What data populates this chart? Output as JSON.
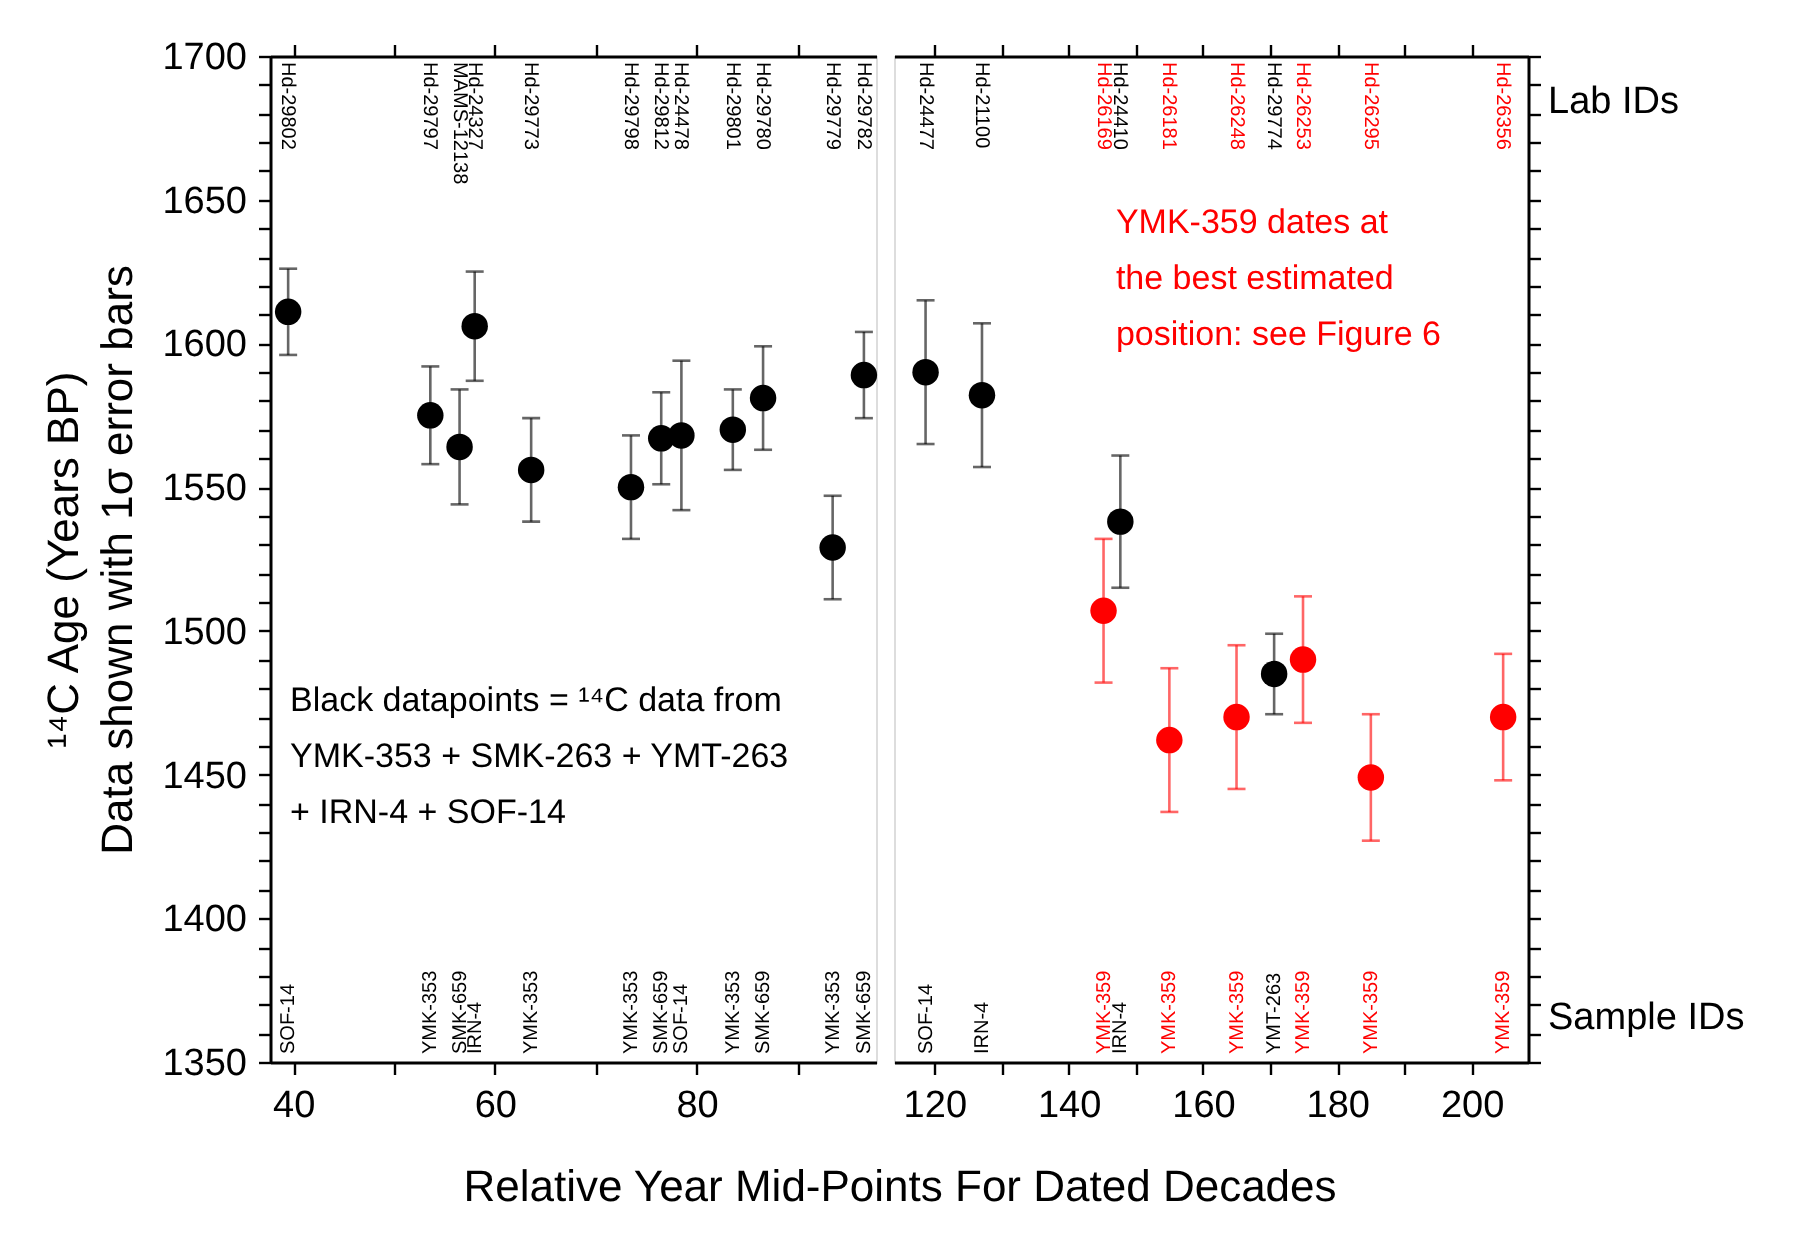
{
  "chart_data": [
    {
      "type": "scatter",
      "ylabel": "¹⁴C Age (Years BP)\nData shown with 1σ error bars",
      "xlabel": "Relative Year Mid-Points For Dated Decades",
      "marker": "circle",
      "grid": false,
      "xlim": [
        37.7,
        97.8
      ],
      "xticks": [
        40,
        {
          "value": 50,
          "label": null
        },
        60,
        {
          "value": 70,
          "label": null
        },
        80,
        {
          "value": 90,
          "label": null
        }
      ],
      "ylim": [
        1350,
        1700
      ],
      "yticks": [
        1350,
        {
          "value": 1360,
          "label": null
        },
        {
          "value": 1370,
          "label": null
        },
        {
          "value": 1380,
          "label": null
        },
        {
          "value": 1390,
          "label": null
        },
        1400,
        {
          "value": 1410,
          "label": null
        },
        {
          "value": 1420,
          "label": null
        },
        {
          "value": 1430,
          "label": null
        },
        {
          "value": 1440,
          "label": null
        },
        1450,
        {
          "value": 1460,
          "label": null
        },
        {
          "value": 1470,
          "label": null
        },
        {
          "value": 1480,
          "label": null
        },
        {
          "value": 1490,
          "label": null
        },
        1500,
        {
          "value": 1510,
          "label": null
        },
        {
          "value": 1520,
          "label": null
        },
        {
          "value": 1530,
          "label": null
        },
        {
          "value": 1540,
          "label": null
        },
        1550,
        {
          "value": 1560,
          "label": null
        },
        {
          "value": 1570,
          "label": null
        },
        {
          "value": 1580,
          "label": null
        },
        {
          "value": 1590,
          "label": null
        },
        1600,
        {
          "value": 1610,
          "label": null
        },
        {
          "value": 1620,
          "label": null
        },
        {
          "value": 1630,
          "label": null
        },
        {
          "value": 1640,
          "label": null
        },
        1650,
        {
          "value": 1660,
          "label": null
        },
        {
          "value": 1670,
          "label": null
        },
        {
          "value": 1680,
          "label": null
        },
        {
          "value": 1690,
          "label": null
        },
        1700
      ],
      "series": [
        {
          "name": "Black datapoints = ¹⁴C data from\nYMK-353 + SMK-263 + YMT-263\n+ IRN-4 + SOF-14",
          "color": "#000000",
          "x": [
            39.5,
            53.6,
            56.5,
            58,
            63.6,
            73.5,
            76.5,
            78.5,
            83.6,
            86.6,
            93.5,
            96.6
          ],
          "values": [
            1611,
            1575,
            1564,
            1606,
            1556,
            1550,
            1567,
            1568,
            1570,
            1581,
            1529,
            1589
          ],
          "errors": [
            15,
            17,
            20,
            19,
            18,
            18,
            16,
            26,
            14,
            18,
            18,
            15
          ]
        }
      ],
      "annotations": [
        "Hd-29802",
        "Hd-29797",
        "MAMS-12138",
        "Hd-24327",
        "Hd-29773",
        "Hd-29798",
        "Hd-29812",
        "Hd-24478",
        "Hd-29801",
        "Hd-29780",
        "Hd-29779",
        "Hd-29782",
        "SOF-14",
        "YMK-353",
        "SMK-659",
        "IRN-4",
        "YMK-353",
        "YMK-353",
        "SMK-659",
        "SOF-14",
        "YMK-353",
        "SMK-659",
        "YMK-353",
        "SMK-659"
      ]
    },
    {
      "type": "scatter",
      "marker": "circle",
      "grid": false,
      "tick_labels": "x",
      "xlim": [
        114,
        208.4
      ],
      "xticks": [
        120,
        {
          "value": 130,
          "label": null
        },
        140,
        {
          "value": 150,
          "label": null
        },
        160,
        {
          "value": 170,
          "label": null
        },
        180,
        {
          "value": 190,
          "label": null
        },
        200
      ],
      "ylim": [
        1350,
        1700
      ],
      "yticks": [
        1350,
        {
          "value": 1360,
          "label": null
        },
        {
          "value": 1370,
          "label": null
        },
        {
          "value": 1380,
          "label": null
        },
        {
          "value": 1390,
          "label": null
        },
        1400,
        {
          "value": 1410,
          "label": null
        },
        {
          "value": 1420,
          "label": null
        },
        {
          "value": 1430,
          "label": null
        },
        {
          "value": 1440,
          "label": null
        },
        1450,
        {
          "value": 1460,
          "label": null
        },
        {
          "value": 1470,
          "label": null
        },
        {
          "value": 1480,
          "label": null
        },
        {
          "value": 1490,
          "label": null
        },
        1500,
        {
          "value": 1510,
          "label": null
        },
        {
          "value": 1520,
          "label": null
        },
        {
          "value": 1530,
          "label": null
        },
        {
          "value": 1540,
          "label": null
        },
        1550,
        {
          "value": 1560,
          "label": null
        },
        {
          "value": 1570,
          "label": null
        },
        {
          "value": 1580,
          "label": null
        },
        {
          "value": 1590,
          "label": null
        },
        1600,
        {
          "value": 1610,
          "label": null
        },
        {
          "value": 1620,
          "label": null
        },
        {
          "value": 1630,
          "label": null
        },
        {
          "value": 1640,
          "label": null
        },
        1650,
        {
          "value": 1660,
          "label": null
        },
        {
          "value": 1670,
          "label": null
        },
        {
          "value": 1680,
          "label": null
        },
        {
          "value": 1690,
          "label": null
        },
        1700
      ],
      "series": [
        {
          "color": "#000000",
          "x": [
            118.7,
            127.1,
            147.7,
            170.6
          ],
          "values": [
            1590,
            1582,
            1538,
            1485
          ],
          "errors": [
            25,
            25,
            23,
            14
          ]
        },
        {
          "name": "YMK-359 dates at\nthe best estimated\nposition: see Figure 6",
          "color": "#ff0000",
          "x": [
            145.2,
            155,
            165,
            174.9,
            185,
            204.7
          ],
          "values": [
            1507,
            1462,
            1470,
            1490,
            1449,
            1470
          ],
          "errors": [
            25,
            25,
            25,
            22,
            22,
            22
          ]
        }
      ],
      "annotations": [
        "Hd-24477",
        "Hd-21100",
        "Hd-24410",
        "Hd-29774",
        "Hd-26169",
        "Hd-26181",
        "Hd-26248",
        "Hd-26253",
        "Hd-26295",
        "Hd-26356",
        "SOF-14",
        "IRN-4",
        "IRN-4",
        "YMT-263",
        "YMK-359",
        "YMK-359",
        "YMK-359",
        "YMK-359",
        "YMK-359",
        "YMK-359",
        "Lab IDs",
        "Sample IDs"
      ]
    }
  ]
}
